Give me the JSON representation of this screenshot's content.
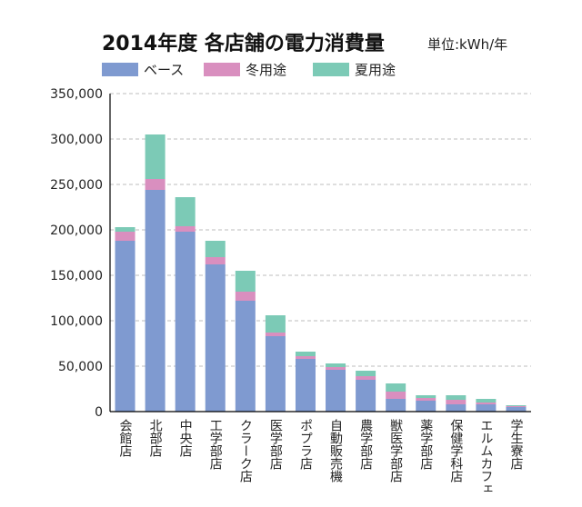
{
  "title": "2014年度 各店舗の電力消費量",
  "unit": "単位:kWh/年",
  "colors": {
    "base": "#7f9ad0",
    "winter": "#d98fbf",
    "summer": "#7ccab6",
    "grid": "#bdbdbd",
    "axis": "#000000"
  },
  "chart_data": {
    "type": "bar",
    "stacked": true,
    "title": "2014年度 各店舗の電力消費量",
    "ylabel": "単位:kWh/年",
    "ylim": [
      0,
      350000
    ],
    "yticks": [
      0,
      50000,
      100000,
      150000,
      200000,
      250000,
      300000,
      350000
    ],
    "ytick_labels": [
      "0",
      "50,000",
      "100,000",
      "150,000",
      "200,000",
      "250,000",
      "300,000",
      "350,000"
    ],
    "grid": true,
    "legend": "top-left",
    "categories": [
      "会館店",
      "北部店",
      "中央店",
      "工学部店",
      "クラーク店",
      "医学部店",
      "ポプラ店",
      "自動販売機",
      "農学部店",
      "獣医学部店",
      "薬学部店",
      "保健学科店",
      "エルムカフェ",
      "学生寮店"
    ],
    "series": [
      {
        "name": "ベース",
        "values": [
          188000,
          244000,
          198000,
          162000,
          122000,
          83000,
          58000,
          46000,
          35000,
          14000,
          12000,
          8000,
          8000,
          5000
        ]
      },
      {
        "name": "冬用途",
        "values": [
          10000,
          12000,
          6000,
          8000,
          10000,
          4000,
          3000,
          3000,
          4000,
          8000,
          3000,
          5000,
          2000,
          1000
        ]
      },
      {
        "name": "夏用途",
        "values": [
          5000,
          49000,
          32000,
          18000,
          23000,
          19000,
          5000,
          4000,
          6000,
          9000,
          3000,
          5000,
          4000,
          1000
        ]
      }
    ]
  }
}
